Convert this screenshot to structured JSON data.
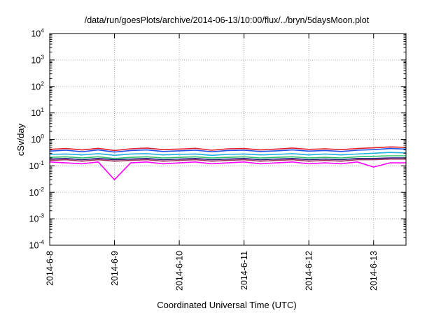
{
  "chart_data": {
    "type": "line",
    "title": "/data/run/goesPlots/archive/2014-06-13/10:00/flux/../bryn/5daysMoon.plot",
    "xlabel": "Coordinated Universal Time (UTC)",
    "ylabel": "cSv/day",
    "y_scale": "log",
    "ylim": [
      0.0001,
      10000
    ],
    "xlim": [
      "2014-06-08T00:00",
      "2014-06-13T12:00"
    ],
    "grid": true,
    "legend": "none",
    "y_ticks": [
      {
        "value": 0.0001,
        "base": "10",
        "exp": "-4"
      },
      {
        "value": 0.001,
        "base": "10",
        "exp": "-3"
      },
      {
        "value": 0.01,
        "base": "10",
        "exp": "-2"
      },
      {
        "value": 0.1,
        "base": "10",
        "exp": "-1"
      },
      {
        "value": 1,
        "base": "10",
        "exp": "0"
      },
      {
        "value": 10,
        "base": "10",
        "exp": "1"
      },
      {
        "value": 100,
        "base": "10",
        "exp": "2"
      },
      {
        "value": 1000,
        "base": "10",
        "exp": "3"
      },
      {
        "value": 10000,
        "base": "10",
        "exp": "4"
      }
    ],
    "x_ticks": [
      {
        "value": "2014-06-08T00:00",
        "label": "2014-6-8"
      },
      {
        "value": "2014-06-09T00:00",
        "label": "2014-6-9"
      },
      {
        "value": "2014-06-10T00:00",
        "label": "2014-6-10"
      },
      {
        "value": "2014-06-11T00:00",
        "label": "2014-6-11"
      },
      {
        "value": "2014-06-12T00:00",
        "label": "2014-6-12"
      },
      {
        "value": "2014-06-13T00:00",
        "label": "2014-6-13"
      }
    ],
    "x": [
      "2014-06-08T00:00",
      "2014-06-08T06:00",
      "2014-06-08T12:00",
      "2014-06-08T18:00",
      "2014-06-09T00:00",
      "2014-06-09T06:00",
      "2014-06-09T12:00",
      "2014-06-09T18:00",
      "2014-06-10T00:00",
      "2014-06-10T06:00",
      "2014-06-10T12:00",
      "2014-06-10T18:00",
      "2014-06-11T00:00",
      "2014-06-11T06:00",
      "2014-06-11T12:00",
      "2014-06-11T18:00",
      "2014-06-12T00:00",
      "2014-06-12T06:00",
      "2014-06-12T12:00",
      "2014-06-12T18:00",
      "2014-06-13T00:00",
      "2014-06-13T06:00",
      "2014-06-13T12:00"
    ],
    "series": [
      {
        "color": "#e0202a",
        "values": [
          0.42,
          0.45,
          0.4,
          0.46,
          0.38,
          0.44,
          0.47,
          0.41,
          0.43,
          0.46,
          0.39,
          0.44,
          0.45,
          0.4,
          0.43,
          0.47,
          0.42,
          0.44,
          0.41,
          0.45,
          0.48,
          0.52,
          0.5
        ]
      },
      {
        "color": "#2050e8",
        "values": [
          0.36,
          0.39,
          0.34,
          0.4,
          0.33,
          0.38,
          0.4,
          0.35,
          0.37,
          0.39,
          0.34,
          0.38,
          0.39,
          0.35,
          0.37,
          0.4,
          0.36,
          0.38,
          0.35,
          0.39,
          0.41,
          0.45,
          0.43
        ]
      },
      {
        "color": "#20b0e0",
        "values": [
          0.27,
          0.28,
          0.26,
          0.29,
          0.25,
          0.28,
          0.29,
          0.26,
          0.27,
          0.28,
          0.25,
          0.27,
          0.28,
          0.26,
          0.27,
          0.29,
          0.26,
          0.28,
          0.26,
          0.28,
          0.3,
          0.32,
          0.31
        ]
      },
      {
        "color": "#30c070",
        "values": [
          0.21,
          0.22,
          0.2,
          0.22,
          0.19,
          0.21,
          0.22,
          0.2,
          0.21,
          0.22,
          0.2,
          0.21,
          0.22,
          0.2,
          0.21,
          0.22,
          0.2,
          0.21,
          0.2,
          0.22,
          0.23,
          0.24,
          0.24
        ]
      },
      {
        "color": "#2a1e80",
        "values": [
          0.18,
          0.19,
          0.17,
          0.19,
          0.17,
          0.18,
          0.19,
          0.17,
          0.18,
          0.19,
          0.17,
          0.18,
          0.19,
          0.17,
          0.18,
          0.19,
          0.17,
          0.18,
          0.17,
          0.19,
          0.19,
          0.2,
          0.2
        ]
      },
      {
        "color": "#a0305a",
        "values": [
          0.16,
          0.17,
          0.15,
          0.17,
          0.15,
          0.16,
          0.17,
          0.15,
          0.16,
          0.17,
          0.15,
          0.16,
          0.17,
          0.15,
          0.16,
          0.17,
          0.15,
          0.16,
          0.15,
          0.17,
          0.17,
          0.18,
          0.18
        ]
      },
      {
        "color": "#ff00ff",
        "values": [
          0.14,
          0.13,
          0.12,
          0.14,
          0.03,
          0.13,
          0.14,
          0.12,
          0.13,
          0.14,
          0.12,
          0.13,
          0.14,
          0.12,
          0.13,
          0.14,
          0.12,
          0.13,
          0.12,
          0.14,
          0.09,
          0.13,
          0.13
        ]
      }
    ]
  }
}
